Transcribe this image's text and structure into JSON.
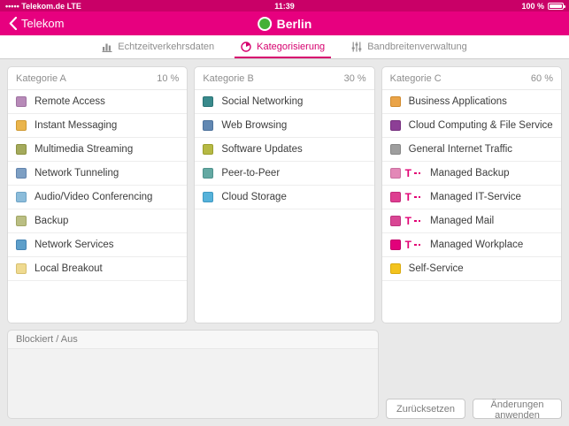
{
  "status_bar": {
    "carrier": "••••• Telekom.de LTE",
    "time": "11:39",
    "battery_percent": "100 %"
  },
  "nav_bar": {
    "back_label": "Telekom",
    "title": "Berlin",
    "status_dot_color": "#44b035"
  },
  "tab_bar": {
    "tabs": [
      {
        "label": "Echtzeitverkehrsdaten",
        "icon": "bar-chart-icon",
        "selected": false
      },
      {
        "label": "Kategorisierung",
        "icon": "pie-chart-icon",
        "selected": true
      },
      {
        "label": "Bandbreitenverwaltung",
        "icon": "sliders-icon",
        "selected": false
      }
    ],
    "selected_color": "#d6006e"
  },
  "categories": [
    {
      "title": "Kategorie A",
      "percent": "10 %",
      "items": [
        {
          "label": "Remote Access",
          "swatch": "#b78ab8",
          "swatch_border": "#9f72a1",
          "managed": false
        },
        {
          "label": "Instant Messaging",
          "swatch": "#eab54d",
          "swatch_border": "#d09a31",
          "managed": false
        },
        {
          "label": "Multimedia Streaming",
          "swatch": "#a4aa5c",
          "swatch_border": "#8b9140",
          "managed": false
        },
        {
          "label": "Network Tunneling",
          "swatch": "#7d9fc3",
          "swatch_border": "#6284ad",
          "managed": false
        },
        {
          "label": "Audio/Video Conferencing",
          "swatch": "#8bbcda",
          "swatch_border": "#6fa4c6",
          "managed": false
        },
        {
          "label": "Backup",
          "swatch": "#babe83",
          "swatch_border": "#a1a665",
          "managed": false
        },
        {
          "label": "Network Services",
          "swatch": "#5e9fca",
          "swatch_border": "#4684b4",
          "managed": false
        },
        {
          "label": "Local Breakout",
          "swatch": "#efda90",
          "swatch_border": "#d7c06f",
          "managed": false
        }
      ]
    },
    {
      "title": "Kategorie B",
      "percent": "30 %",
      "items": [
        {
          "label": "Social Networking",
          "swatch": "#398a8c",
          "swatch_border": "#2a7476",
          "managed": false
        },
        {
          "label": "Web Browsing",
          "swatch": "#6288b2",
          "swatch_border": "#4d729c",
          "managed": false
        },
        {
          "label": "Software Updates",
          "swatch": "#b6b944",
          "swatch_border": "#9b9f2d",
          "managed": false
        },
        {
          "label": "Peer-to-Peer",
          "swatch": "#64a9a3",
          "swatch_border": "#4e928c",
          "managed": false
        },
        {
          "label": "Cloud Storage",
          "swatch": "#56b2da",
          "swatch_border": "#3e99c3",
          "managed": false
        }
      ]
    },
    {
      "title": "Kategorie C",
      "percent": "60 %",
      "items": [
        {
          "label": "Business Applications",
          "swatch": "#eaa448",
          "swatch_border": "#d08a2d",
          "managed": false
        },
        {
          "label": "Cloud Computing & File Service",
          "swatch": "#8d3f96",
          "swatch_border": "#76307e",
          "managed": false
        },
        {
          "label": "General Internet Traffic",
          "swatch": "#9e9e9e",
          "swatch_border": "#868686",
          "managed": false
        },
        {
          "label": "Managed Backup",
          "swatch": "#e388b7",
          "swatch_border": "#ca6e9f",
          "managed": true
        },
        {
          "label": "Managed IT-Service",
          "swatch": "#de3e91",
          "swatch_border": "#c32b7b",
          "managed": true
        },
        {
          "label": "Managed Mail",
          "swatch": "#d94694",
          "swatch_border": "#c0327f",
          "managed": true
        },
        {
          "label": "Managed Workplace",
          "swatch": "#e2017b",
          "swatch_border": "#c30069",
          "managed": true
        },
        {
          "label": "Self-Service",
          "swatch": "#f3c31e",
          "swatch_border": "#d9aa0e",
          "managed": false
        }
      ]
    }
  ],
  "blocked_panel": {
    "title": "Blockiert / Aus"
  },
  "actions": {
    "reset_label": "Zurücksetzen",
    "apply_label": "Änderungen anwenden"
  },
  "brand": {
    "telekom_logo_letter": "T",
    "magenta": "#e20074"
  }
}
